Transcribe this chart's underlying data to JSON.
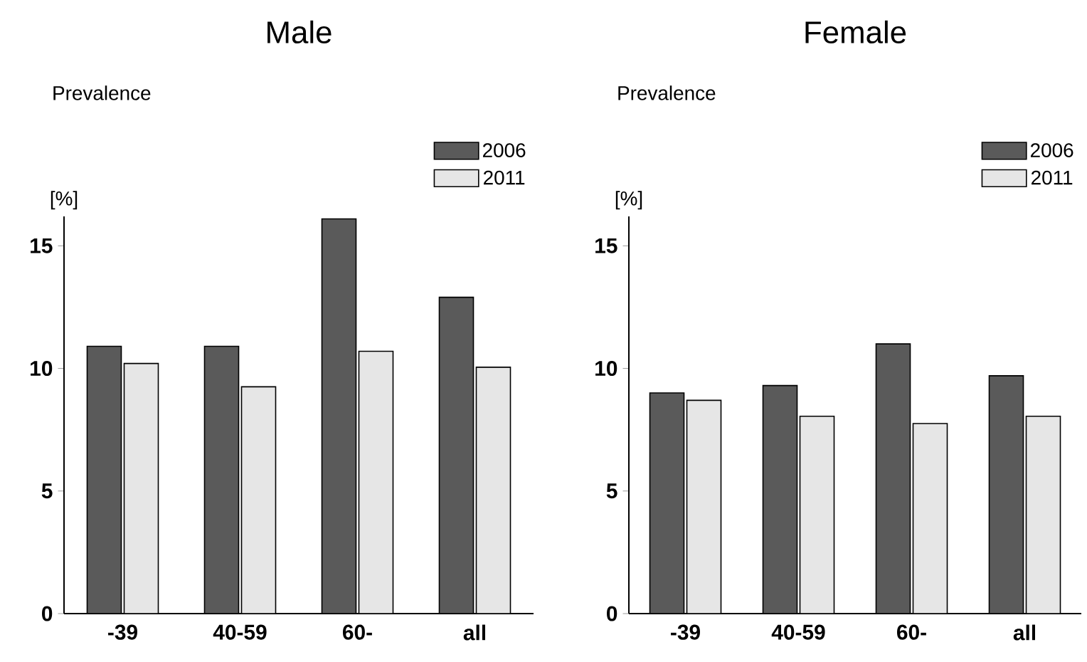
{
  "chart_data": [
    {
      "type": "bar",
      "title": "Male",
      "ylabel": "Prevalence",
      "annotations": [
        "[%]"
      ],
      "categories": [
        "-39",
        "40-59",
        "60-",
        "all"
      ],
      "legend": "top right",
      "ylim": [
        0,
        16.2
      ],
      "yticks": [
        0,
        5,
        10,
        15
      ],
      "series": [
        {
          "name": "2006",
          "color": "#5a5a5a",
          "values": [
            10.9,
            10.9,
            16.1,
            12.9
          ]
        },
        {
          "name": "2011",
          "color": "#e6e6e6",
          "values": [
            10.2,
            9.25,
            10.7,
            10.05
          ]
        }
      ]
    },
    {
      "type": "bar",
      "title": "Female",
      "ylabel": "Prevalence",
      "annotations": [
        "[%]"
      ],
      "categories": [
        "-39",
        "40-59",
        "60-",
        "all"
      ],
      "legend": "top right",
      "ylim": [
        0,
        16.2
      ],
      "yticks": [
        0,
        5,
        10,
        15
      ],
      "series": [
        {
          "name": "2006",
          "color": "#5a5a5a",
          "values": [
            9.0,
            9.3,
            11.0,
            9.7
          ]
        },
        {
          "name": "2011",
          "color": "#e6e6e6",
          "values": [
            8.7,
            8.05,
            7.75,
            8.05
          ]
        }
      ]
    }
  ]
}
